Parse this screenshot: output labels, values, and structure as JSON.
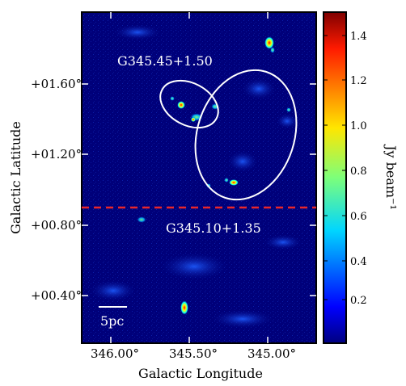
{
  "image": {
    "x_axis_label": "Galactic Longitude",
    "y_axis_label": "Galactic Latitude",
    "x_ticks": [
      "346.00°",
      "345.50°",
      "345.00°"
    ],
    "y_ticks": [
      "+01.60°",
      "+01.20°",
      "+00.80°",
      "+00.40°"
    ],
    "labels": {
      "region_top": "G345.45+1.50",
      "region_bottom": "G345.10+1.35",
      "scale_bar": "5pc"
    },
    "colorbar": {
      "label": "Jy beam⁻¹",
      "ticks": [
        "1.4",
        "1.2",
        "1.0",
        "0.8",
        "0.6",
        "0.4",
        "0.2"
      ]
    },
    "colors": {
      "background_map": "#00007a",
      "ellipse": "#ffffff",
      "dashed_line": "#e8262b"
    }
  }
}
